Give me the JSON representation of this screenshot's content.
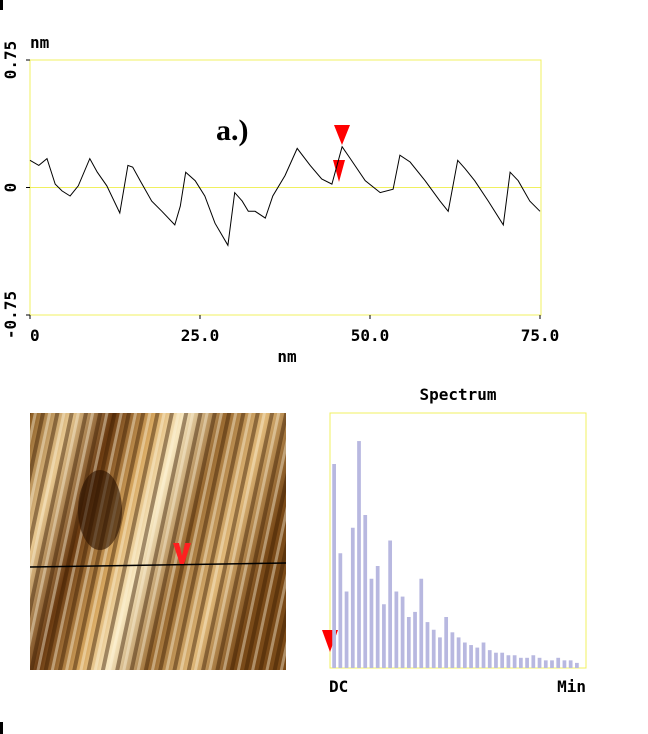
{
  "chart_data": [
    {
      "type": "line",
      "annotation": "a.)",
      "xlabel": "nm",
      "ylabel": "nm",
      "x": [
        0,
        1.3,
        2.5,
        3.7,
        4.7,
        5.9,
        7.1,
        8.8,
        9.9,
        11.3,
        13.2,
        14.4,
        15.1,
        16.2,
        17.9,
        19.4,
        21.3,
        22.1,
        22.9,
        24.3,
        25.7,
        27.2,
        29.1,
        30.1,
        31.2,
        32.1,
        33.1,
        34.6,
        35.7,
        37.5,
        39.3,
        41.2,
        42.9,
        44.4,
        45.9,
        47.1,
        49.3,
        51.5,
        53.4,
        54.4,
        55.9,
        58.1,
        60.3,
        61.5,
        62.9,
        64.0,
        65.4,
        67.4,
        69.6,
        70.6,
        71.8,
        73.5,
        75.0
      ],
      "values": [
        0.16,
        0.13,
        0.17,
        0.02,
        -0.02,
        -0.05,
        0.01,
        0.17,
        0.09,
        0.01,
        -0.15,
        0.13,
        0.12,
        0.04,
        -0.08,
        -0.14,
        -0.22,
        -0.11,
        0.09,
        0.04,
        -0.05,
        -0.21,
        -0.34,
        -0.03,
        -0.08,
        -0.14,
        -0.14,
        -0.18,
        -0.05,
        0.07,
        0.23,
        0.13,
        0.05,
        0.02,
        0.24,
        0.17,
        0.04,
        -0.03,
        -0.01,
        0.19,
        0.15,
        0.04,
        -0.08,
        -0.14,
        0.16,
        0.11,
        0.04,
        -0.08,
        -0.22,
        0.09,
        0.04,
        -0.08,
        -0.14
      ],
      "color": "#000000",
      "xlim": [
        0,
        75
      ],
      "xticks": [
        0,
        {
          "value": 25,
          "label": "25.0"
        },
        {
          "value": 50,
          "label": "50.0"
        },
        {
          "value": 75,
          "label": "75.0"
        }
      ],
      "ylim": [
        -0.75,
        0.75
      ],
      "yticks": [
        0.75,
        0,
        -0.75
      ]
    },
    {
      "type": "bar",
      "title": "Spectrum",
      "categories": [
        "DC",
        null,
        null,
        null,
        null,
        null,
        null,
        null,
        null,
        null,
        null,
        null,
        null,
        null,
        null,
        null,
        null,
        null,
        null,
        null,
        null,
        null,
        null,
        null,
        null,
        null,
        null,
        null,
        null,
        null,
        null,
        null,
        null,
        null,
        null,
        null,
        null,
        null,
        null,
        "Min"
      ],
      "values": [
        80,
        45,
        30,
        55,
        89,
        60,
        35,
        40,
        25,
        50,
        30,
        28,
        20,
        22,
        35,
        18,
        15,
        12,
        20,
        14,
        12,
        10,
        9,
        8,
        10,
        7,
        6,
        6,
        5,
        5,
        4,
        4,
        5,
        4,
        3,
        3,
        4,
        3,
        3,
        2
      ],
      "color": "#b8b8e0",
      "ylim": [
        0,
        100
      ]
    }
  ]
}
